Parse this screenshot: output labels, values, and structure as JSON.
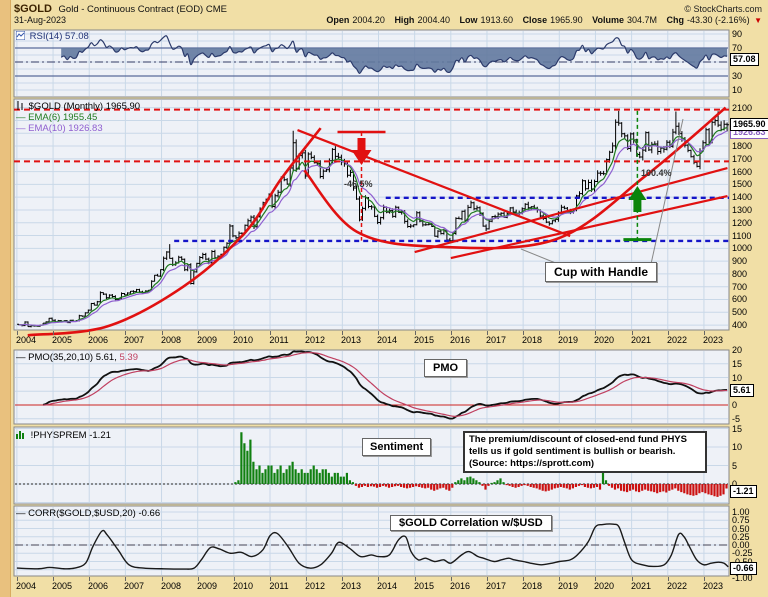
{
  "header": {
    "symbol": "$GOLD",
    "description": "Gold - Continuous Contract (EOD) CME",
    "copyright": "© StockCharts.com",
    "date": "31-Aug-2023",
    "quote": {
      "open_label": "Open",
      "open": "2004.20",
      "high_label": "High",
      "high": "2004.40",
      "low_label": "Low",
      "low": "1913.60",
      "close_label": "Close",
      "close": "1965.90",
      "volume_label": "Volume",
      "volume": "304.7M",
      "chg_label": "Chg",
      "chg": "-43.30 (-2.16%)",
      "chg_direction": "down"
    }
  },
  "panels": {
    "rsi": {
      "label": "RSI(14) 57.08",
      "value_box": "57.08"
    },
    "main": {
      "legend_symbol": "$GOLD (Monthly) 1965.90",
      "legend_ema6": "EMA(6) 1955.45",
      "legend_ema10": "EMA(10) 1926.83",
      "value_box": "1965.90",
      "value_box2": "1926.83"
    },
    "pmo": {
      "label_main": "PMO(35,20,10) 5.61,",
      "label_signal": "5.39",
      "value_box": "5.61",
      "box_label": "PMO"
    },
    "sentiment": {
      "label": "!PHYSPREM -1.21",
      "value_box": "-1.21",
      "box_label": "Sentiment",
      "note": "The premium/discount of closed-end fund PHYS tells us if gold sentiment is bullish or bearish. (Source: https://sprott.com)"
    },
    "corr": {
      "label": "CORR($GOLD,$USD,20) -0.66",
      "value_box": "-0.66",
      "box_label": "$GOLD Correlation w/$USD"
    }
  },
  "axis": {
    "years": [
      2004,
      2005,
      2006,
      2007,
      2008,
      2009,
      2010,
      2011,
      2012,
      2013,
      2014,
      2015,
      2016,
      2017,
      2018,
      2019,
      2020,
      2021,
      2022,
      2023
    ]
  },
  "chart_data": [
    {
      "type": "line",
      "title": "RSI(14)",
      "current": 57.08,
      "x_range": [
        2004,
        2023.67
      ],
      "ylim": [
        0,
        100
      ],
      "levels": {
        "overbought": 70,
        "mid": 50,
        "oversold": 30
      },
      "axis_ticks": [
        90,
        70,
        50,
        30,
        10
      ],
      "derived_from": "monthly_close"
    },
    {
      "type": "candlestick-ohlc-bar",
      "title": "$GOLD (Monthly)",
      "current": 1965.9,
      "x_range": [
        2004,
        2023.67
      ],
      "ylim": [
        330,
        2160
      ],
      "start_year": 2004,
      "axis_ticks": [
        2100,
        1800,
        1700,
        1600,
        1500,
        1400,
        1300,
        1200,
        1100,
        1000,
        900,
        800,
        700,
        600,
        500,
        400
      ],
      "overlays": [
        {
          "name": "EMA(6)",
          "current": 1955.45
        },
        {
          "name": "EMA(10)",
          "current": 1926.83
        }
      ],
      "monthly_close": [
        402,
        396,
        424,
        388,
        394,
        393,
        391,
        400,
        415,
        425,
        453,
        438,
        422,
        435,
        428,
        435,
        419,
        437,
        429,
        433,
        473,
        470,
        495,
        517,
        569,
        556,
        582,
        654,
        642,
        613,
        634,
        623,
        599,
        604,
        647,
        636,
        651,
        664,
        662,
        677,
        659,
        651,
        666,
        672,
        743,
        789,
        783,
        834,
        923,
        971,
        921,
        871,
        886,
        930,
        914,
        833,
        871,
        725,
        816,
        882,
        928,
        952,
        916,
        888,
        975,
        927,
        939,
        953,
        1008,
        1040,
        1175,
        1097,
        1083,
        1118,
        1114,
        1180,
        1215,
        1244,
        1169,
        1248,
        1307,
        1357,
        1383,
        1421,
        1327,
        1411,
        1439,
        1556,
        1536,
        1502,
        1628,
        1826,
        1622,
        1725,
        1746,
        1566,
        1738,
        1711,
        1669,
        1664,
        1562,
        1604,
        1615,
        1685,
        1774,
        1719,
        1712,
        1675,
        1660,
        1572,
        1594,
        1472,
        1386,
        1224,
        1312,
        1396,
        1327,
        1323,
        1250,
        1202,
        1240,
        1321,
        1283,
        1295,
        1250,
        1322,
        1281,
        1287,
        1211,
        1171,
        1175,
        1184,
        1279,
        1213,
        1183,
        1184,
        1189,
        1171,
        1095,
        1135,
        1115,
        1141,
        1065,
        1060,
        1116,
        1234,
        1232,
        1290,
        1215,
        1320,
        1357,
        1309,
        1317,
        1273,
        1174,
        1152,
        1212,
        1248,
        1247,
        1268,
        1275,
        1242,
        1275,
        1316,
        1284,
        1271,
        1275,
        1309,
        1345,
        1318,
        1325,
        1315,
        1300,
        1253,
        1233,
        1205,
        1192,
        1215,
        1226,
        1281,
        1321,
        1313,
        1292,
        1286,
        1306,
        1410,
        1428,
        1529,
        1466,
        1515,
        1464,
        1523,
        1588,
        1586,
        1583,
        1694,
        1752,
        1801,
        1986,
        1979,
        1896,
        1879,
        1781,
        1895,
        1848,
        1734,
        1714,
        1768,
        1905,
        1770,
        1814,
        1816,
        1757,
        1784,
        1775,
        1829,
        1797,
        1909,
        1954,
        1897,
        1848,
        1807,
        1766,
        1716,
        1672,
        1641,
        1760,
        1826,
        1928,
        1827,
        1986,
        1999,
        1964,
        1929,
        1971,
        1966
      ],
      "high_overrides": {
        "50": 1033,
        "91": 1920,
        "199": 2075,
        "218": 2070,
        "232": 2072
      },
      "low_overrides": {
        "143": 1046,
        "235": 1914
      },
      "annotations": {
        "resistance_lines": [
          {
            "price": 2085,
            "style": "red-dashed"
          },
          {
            "price": 1680,
            "style": "red-dashed"
          }
        ],
        "support_lines": [
          {
            "price": 1395,
            "from_year": 2014.2,
            "style": "blue-dashed"
          },
          {
            "price": 1058,
            "from_year": 2008.35,
            "style": "blue-dashed"
          }
        ],
        "measure_down": {
          "year": 2013.53,
          "top_price": 1910,
          "bottom_price": 1060,
          "label": "-46.5%"
        },
        "measure_up": {
          "year": 2021.16,
          "bottom_price": 1068,
          "top_price": 2075,
          "label": "100.4%"
        },
        "trendlines": [
          {
            "name": "parabolic-rise",
            "points": [
              [
                2004.3,
                320
              ],
              [
                2006.5,
                390
              ],
              [
                2008.6,
                700
              ],
              [
                2010.3,
                1120
              ],
              [
                2011.3,
                1540
              ],
              [
                2012.4,
                1940
              ]
            ]
          },
          {
            "name": "cup",
            "points": [
              [
                2011.95,
                1610
              ],
              [
                2013.4,
                1130
              ],
              [
                2015.7,
                1012
              ],
              [
                2018.9,
                1070
              ],
              [
                2021.4,
                1570
              ],
              [
                2023.6,
                2100
              ]
            ]
          },
          {
            "name": "downtrend",
            "points": [
              [
                2011.76,
                1925
              ],
              [
                2019.3,
                1096
              ]
            ]
          },
          {
            "name": "uptrend-1",
            "points": [
              [
                2015.0,
                971
              ],
              [
                2023.65,
                1628
              ]
            ]
          },
          {
            "name": "uptrend-2",
            "points": [
              [
                2016.0,
                924
              ],
              [
                2023.65,
                1409
              ]
            ]
          }
        ],
        "callout": {
          "label": "Cup with Handle"
        }
      }
    },
    {
      "type": "line",
      "title": "PMO(35,20,10)",
      "current": 5.61,
      "signal": 5.39,
      "ylim": [
        -5.5,
        20
      ],
      "axis_ticks": [
        20,
        15,
        10,
        0,
        -5
      ],
      "zero_line": 0,
      "derived_from": "monthly_close"
    },
    {
      "type": "bar",
      "title": "!PHYSPREM",
      "current": -1.21,
      "start_year": 2010,
      "ylim": [
        -5,
        15.5
      ],
      "axis_ticks": [
        15,
        10,
        5,
        0
      ],
      "monthly_values": [
        0.5,
        1,
        14,
        11,
        9,
        12,
        6,
        4,
        5,
        3,
        4,
        5,
        5,
        3,
        4,
        5,
        3,
        4,
        5,
        6,
        4,
        3,
        4,
        3,
        3,
        4,
        5,
        4,
        3,
        4,
        4,
        3,
        2,
        3,
        3,
        2,
        2,
        3,
        1,
        0.5,
        -0.5,
        -1,
        -0.8,
        -0.5,
        -0.8,
        -0.6,
        -0.7,
        -1,
        -0.8,
        -0.5,
        -0.7,
        -1,
        -0.8,
        -0.6,
        -0.5,
        -0.8,
        -1,
        -1.2,
        -1,
        -0.8,
        -0.6,
        -0.8,
        -1,
        -1.2,
        -1,
        -1.5,
        -1.8,
        -1.5,
        -1.2,
        -1,
        -1.5,
        -1.8,
        -1,
        0.5,
        1,
        1.5,
        1,
        1.8,
        2,
        1.5,
        1,
        0.5,
        -0.5,
        -1.5,
        -0.5,
        0.3,
        0.5,
        1,
        1.5,
        0.5,
        -0.3,
        -0.5,
        -0.8,
        -1,
        -0.8,
        -0.5,
        -0.3,
        -0.5,
        -0.8,
        -1,
        -1.2,
        -1.5,
        -1.8,
        -2,
        -1.8,
        -1.5,
        -1.2,
        -1,
        -0.8,
        -1,
        -1.2,
        -1.5,
        -1.2,
        -0.8,
        -0.5,
        -0.3,
        -0.8,
        -1,
        -1.2,
        -1,
        -0.8,
        -1.5,
        3.8,
        1,
        -0.5,
        -1,
        -1.5,
        -1.2,
        -1.8,
        -2,
        -2.2,
        -1.8,
        -1.5,
        -2,
        -2.2,
        -1.8,
        -1.5,
        -1.8,
        -2,
        -2.2,
        -2.5,
        -2.2,
        -2,
        -2.3,
        -1.8,
        -1.5,
        -1.2,
        -1.8,
        -2.2,
        -2.5,
        -2.8,
        -3,
        -3.2,
        -3,
        -2.5,
        -2.2,
        -2.5,
        -2.8,
        -3,
        -3.3,
        -3.5,
        -3.2,
        -2.8,
        -1.21
      ]
    },
    {
      "type": "line",
      "title": "CORR($GOLD,$USD,20)",
      "current": -0.66,
      "ylim": [
        -1,
        1
      ],
      "axis_ticks": [
        "1.00",
        "0.75",
        "0.50",
        "0.25",
        "0.00",
        "-0.25",
        "-0.50",
        "-1.00"
      ],
      "points": [
        [
          2004.0,
          -0.7
        ],
        [
          2004.6,
          -0.72
        ],
        [
          2004.9,
          -0.68
        ],
        [
          2005.3,
          -0.72
        ],
        [
          2005.6,
          -0.7
        ],
        [
          2005.9,
          -0.55
        ],
        [
          2006.1,
          -0.05
        ],
        [
          2006.35,
          0.42
        ],
        [
          2006.5,
          0.3
        ],
        [
          2006.8,
          -0.15
        ],
        [
          2007.1,
          -0.6
        ],
        [
          2007.5,
          -0.7
        ],
        [
          2008.0,
          -0.72
        ],
        [
          2008.6,
          -0.73
        ],
        [
          2008.9,
          -0.7
        ],
        [
          2009.1,
          -0.45
        ],
        [
          2009.35,
          -0.08
        ],
        [
          2009.6,
          -0.12
        ],
        [
          2009.9,
          -0.25
        ],
        [
          2010.2,
          -0.22
        ],
        [
          2010.5,
          -0.35
        ],
        [
          2010.8,
          -0.15
        ],
        [
          2011.0,
          0.28
        ],
        [
          2011.2,
          0.35
        ],
        [
          2011.5,
          -0.05
        ],
        [
          2011.8,
          -0.55
        ],
        [
          2012.1,
          -0.7
        ],
        [
          2012.4,
          -0.6
        ],
        [
          2012.7,
          -0.25
        ],
        [
          2012.9,
          0.08
        ],
        [
          2013.2,
          -0.1
        ],
        [
          2013.5,
          -0.35
        ],
        [
          2013.8,
          -0.3
        ],
        [
          2014.0,
          -0.35
        ],
        [
          2014.3,
          -0.3
        ],
        [
          2014.55,
          0.15
        ],
        [
          2014.75,
          0.25
        ],
        [
          2014.9,
          -0.2
        ],
        [
          2015.1,
          -0.45
        ],
        [
          2015.3,
          -0.4
        ],
        [
          2015.55,
          -0.5
        ],
        [
          2015.8,
          -0.45
        ],
        [
          2016.0,
          -0.55
        ],
        [
          2016.3,
          -0.3
        ],
        [
          2016.5,
          -0.2
        ],
        [
          2016.75,
          -0.35
        ],
        [
          2016.9,
          -0.4
        ],
        [
          2017.2,
          -0.5
        ],
        [
          2017.4,
          -0.45
        ],
        [
          2017.6,
          -0.4
        ],
        [
          2017.75,
          -0.45
        ],
        [
          2018.0,
          -0.5
        ],
        [
          2018.2,
          -0.55
        ],
        [
          2018.5,
          -0.6
        ],
        [
          2018.8,
          -0.55
        ],
        [
          2019.0,
          -0.5
        ],
        [
          2019.3,
          -0.45
        ],
        [
          2019.5,
          -0.3
        ],
        [
          2019.8,
          0.1
        ],
        [
          2020.0,
          0.55
        ],
        [
          2020.2,
          0.62
        ],
        [
          2020.5,
          0.63
        ],
        [
          2020.65,
          0.55
        ],
        [
          2020.8,
          0.1
        ],
        [
          2021.0,
          -0.45
        ],
        [
          2021.3,
          -0.6
        ],
        [
          2021.6,
          -0.65
        ],
        [
          2021.9,
          -0.6
        ],
        [
          2022.1,
          -0.3
        ],
        [
          2022.3,
          0.32
        ],
        [
          2022.45,
          0.25
        ],
        [
          2022.6,
          -0.05
        ],
        [
          2022.8,
          -0.45
        ],
        [
          2023.0,
          -0.6
        ],
        [
          2023.2,
          -0.55
        ],
        [
          2023.4,
          -0.52
        ],
        [
          2023.55,
          -0.55
        ],
        [
          2023.67,
          -0.66
        ]
      ]
    }
  ],
  "colors": {
    "page_bg": "#f1dfa6",
    "left_strip": "#e9c17e",
    "plot_bg": "#eef1f7",
    "grid": "#c9d8e8",
    "frame": "#888888",
    "bar": "#000000",
    "ema6": "#1f7a1f",
    "ema10": "#8f5fd0",
    "rsi_line": "#2b3a6b",
    "rsi_fill": "#62799f",
    "pmo_line": "#111111",
    "pmo_signal": "#c04060",
    "pmo_zero": "#cc2222",
    "sent_pos": "#108010",
    "sent_neg": "#cc1111",
    "corr_line": "#1a1a1a",
    "annot_red": "#e11111",
    "annot_blue": "#1515c8",
    "annot_green": "#0a840a",
    "chg_down": "#cc0000"
  }
}
